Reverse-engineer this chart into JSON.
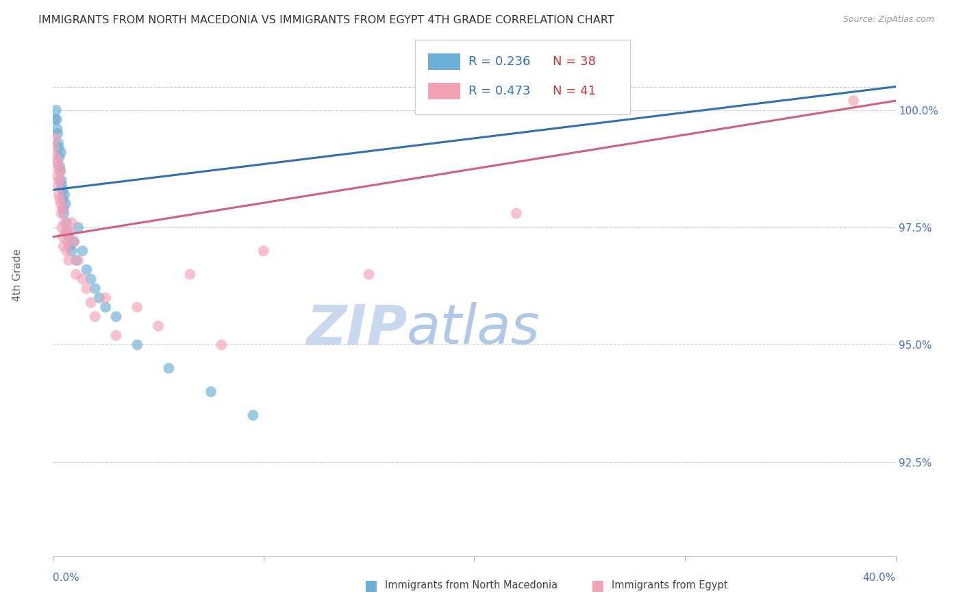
{
  "title": "IMMIGRANTS FROM NORTH MACEDONIA VS IMMIGRANTS FROM EGYPT 4TH GRADE CORRELATION CHART",
  "source": "Source: ZipAtlas.com",
  "ylabel": "4th Grade",
  "xlim": [
    0.0,
    40.0
  ],
  "ylim": [
    90.5,
    101.5
  ],
  "right_yticks": [
    92.5,
    95.0,
    97.5,
    100.0
  ],
  "right_yticklabels": [
    "92.5%",
    "95.0%",
    "97.5%",
    "100.0%"
  ],
  "color_blue": "#6baed6",
  "color_pink": "#f4a0b5",
  "color_blue_line": "#3070b0",
  "color_pink_line": "#d06080",
  "color_title": "#333333",
  "color_axis_labels": "#4472c4",
  "watermark_zip": "ZIP",
  "watermark_atlas": "atlas",
  "watermark_color_zip": "#c8d8ef",
  "watermark_color_atlas": "#b0c8e8",
  "blue_x": [
    0.1,
    0.15,
    0.18,
    0.2,
    0.22,
    0.25,
    0.28,
    0.3,
    0.32,
    0.35,
    0.38,
    0.4,
    0.42,
    0.45,
    0.48,
    0.5,
    0.52,
    0.55,
    0.6,
    0.65,
    0.7,
    0.75,
    0.8,
    0.9,
    1.0,
    1.1,
    1.2,
    1.4,
    1.6,
    1.8,
    2.0,
    2.2,
    2.5,
    3.0,
    4.0,
    5.5,
    7.5,
    9.5
  ],
  "blue_y": [
    99.8,
    100.0,
    99.8,
    99.6,
    99.5,
    99.3,
    99.2,
    99.0,
    98.8,
    98.7,
    99.1,
    98.5,
    98.4,
    98.3,
    98.1,
    97.9,
    97.8,
    98.2,
    98.0,
    97.6,
    97.4,
    97.3,
    97.1,
    97.0,
    97.2,
    96.8,
    97.5,
    97.0,
    96.6,
    96.4,
    96.2,
    96.0,
    95.8,
    95.6,
    95.0,
    94.5,
    94.0,
    93.5
  ],
  "pink_x": [
    0.05,
    0.1,
    0.15,
    0.18,
    0.2,
    0.22,
    0.25,
    0.28,
    0.3,
    0.32,
    0.35,
    0.38,
    0.4,
    0.42,
    0.45,
    0.48,
    0.5,
    0.55,
    0.6,
    0.65,
    0.7,
    0.75,
    0.8,
    0.9,
    1.0,
    1.1,
    1.2,
    1.4,
    1.6,
    1.8,
    2.0,
    2.5,
    3.0,
    4.0,
    5.0,
    6.5,
    8.0,
    10.0,
    15.0,
    22.0,
    38.0
  ],
  "pink_y": [
    99.2,
    99.4,
    99.0,
    98.8,
    98.6,
    98.9,
    98.4,
    98.2,
    98.5,
    98.1,
    98.7,
    98.0,
    97.8,
    97.5,
    97.9,
    97.3,
    97.1,
    97.6,
    97.4,
    97.0,
    97.2,
    96.8,
    97.4,
    97.6,
    97.2,
    96.5,
    96.8,
    96.4,
    96.2,
    95.9,
    95.6,
    96.0,
    95.2,
    95.8,
    95.4,
    96.5,
    95.0,
    97.0,
    96.5,
    97.8,
    100.2
  ],
  "trend_blue_x0": 0.0,
  "trend_blue_x1": 40.0,
  "trend_blue_y0": 98.3,
  "trend_blue_y1": 100.5,
  "trend_pink_x0": 0.0,
  "trend_pink_x1": 40.0,
  "trend_pink_y0": 97.3,
  "trend_pink_y1": 100.2
}
